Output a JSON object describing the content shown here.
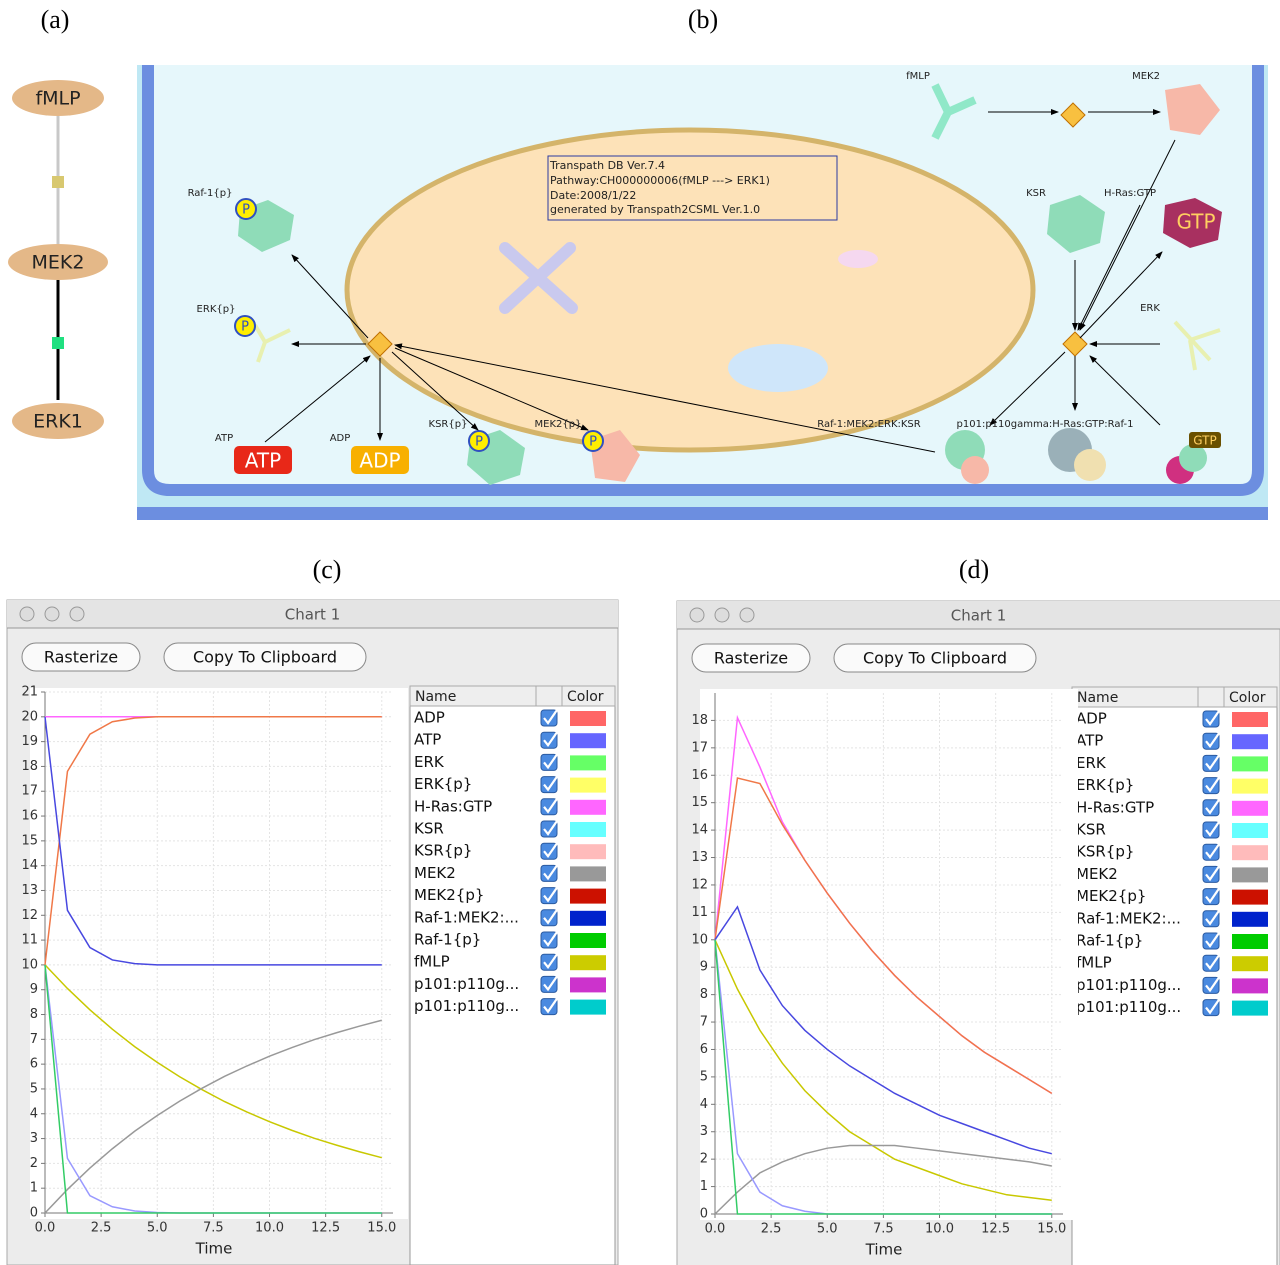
{
  "panel_labels": [
    "(a)",
    "(b)",
    "(c)",
    "(d)"
  ],
  "pathway_a": {
    "nodes": [
      "fMLP",
      "MEK2",
      "ERK1"
    ]
  },
  "pathway_b": {
    "info": [
      "Transpath DB Ver.7.4",
      "Pathway:CH000000006(fMLP ---> ERK1)",
      "Date:2008/1/22",
      "generated by Transpath2CSML Ver.1.0"
    ],
    "labels": [
      "fMLP",
      "MEK2",
      "KSR",
      "H-Ras:GTP",
      "ERK",
      "Raf-1{p}",
      "ERK{p}",
      "ATP",
      "ADP",
      "KSR{p}",
      "MEK2{p}",
      "Raf-1:MEK2:ERK:KSR",
      "p101:p110gamma:H-Ras:GTP:Raf-1"
    ],
    "icons": [
      "P",
      "P",
      "P",
      "P",
      "ATP",
      "ADP",
      "GTP",
      "GTP"
    ]
  },
  "windows": [
    {
      "title": "Chart 1",
      "buttons": [
        "Rasterize",
        "Copy To Clipboard"
      ],
      "table_header": [
        "Name",
        "Color"
      ],
      "legend": [
        {
          "name": "ADP",
          "color": "#ff6666"
        },
        {
          "name": "ATP",
          "color": "#6666ff"
        },
        {
          "name": "ERK",
          "color": "#66ff66"
        },
        {
          "name": "ERK{p}",
          "color": "#ffff66"
        },
        {
          "name": "H-Ras:GTP",
          "color": "#ff66ff"
        },
        {
          "name": "KSR",
          "color": "#66ffff"
        },
        {
          "name": "KSR{p}",
          "color": "#ffbbbb"
        },
        {
          "name": "MEK2",
          "color": "#999999"
        },
        {
          "name": "MEK2{p}",
          "color": "#cc1100"
        },
        {
          "name": "Raf-1:MEK2:...",
          "color": "#0022cc"
        },
        {
          "name": "Raf-1{p}",
          "color": "#00cc00"
        },
        {
          "name": "fMLP",
          "color": "#cccc00"
        },
        {
          "name": "p101:p110g...",
          "color": "#cc33cc"
        },
        {
          "name": "p101:p110g...",
          "color": "#00cccc"
        }
      ]
    },
    {
      "title": "Chart 1",
      "buttons": [
        "Rasterize",
        "Copy To Clipboard"
      ],
      "table_header": [
        "Name",
        "Color"
      ],
      "legend": [
        {
          "name": "ADP",
          "color": "#ff6666"
        },
        {
          "name": "ATP",
          "color": "#6666ff"
        },
        {
          "name": "ERK",
          "color": "#66ff66"
        },
        {
          "name": "ERK{p}",
          "color": "#ffff66"
        },
        {
          "name": "H-Ras:GTP",
          "color": "#ff66ff"
        },
        {
          "name": "KSR",
          "color": "#66ffff"
        },
        {
          "name": "KSR{p}",
          "color": "#ffbbbb"
        },
        {
          "name": "MEK2",
          "color": "#999999"
        },
        {
          "name": "MEK2{p}",
          "color": "#cc1100"
        },
        {
          "name": "Raf-1:MEK2:...",
          "color": "#0022cc"
        },
        {
          "name": "Raf-1{p}",
          "color": "#00cc00"
        },
        {
          "name": "fMLP",
          "color": "#cccc00"
        },
        {
          "name": "p101:p110g...",
          "color": "#cc33cc"
        },
        {
          "name": "p101:p110g...",
          "color": "#00cccc"
        }
      ]
    }
  ],
  "chart_data": [
    {
      "type": "line",
      "x_label": "Time",
      "x": [
        0,
        1,
        2,
        3,
        4,
        5,
        6,
        7,
        8,
        9,
        10,
        11,
        12,
        13,
        14,
        15
      ],
      "xlim": [
        0,
        15.5
      ],
      "ylim": [
        0,
        21
      ],
      "grid": true,
      "xticks": [
        {
          "value": 0,
          "label": "0.0"
        },
        {
          "value": 2.5,
          "label": "2.5"
        },
        {
          "value": 5,
          "label": "5.0"
        },
        {
          "value": 7.5,
          "label": "7.5"
        },
        {
          "value": 10,
          "label": "10.0"
        },
        {
          "value": 12.5,
          "label": "12.5"
        },
        {
          "value": 15,
          "label": "15.0"
        }
      ],
      "yticks": [
        0,
        1,
        2,
        3,
        4,
        5,
        6,
        7,
        8,
        9,
        10,
        11,
        12,
        13,
        14,
        15,
        16,
        17,
        18,
        19,
        20,
        21
      ],
      "series": [
        {
          "name": "H-Ras:GTP",
          "color": "#ff66ff",
          "values": [
            20,
            20,
            20,
            20,
            20,
            20,
            20,
            20,
            20,
            20,
            20,
            20,
            20,
            20,
            20,
            20
          ]
        },
        {
          "name": "ADP",
          "color": "#f07848",
          "values": [
            10,
            17.8,
            19.3,
            19.8,
            19.95,
            20,
            20,
            20,
            20,
            20,
            20,
            20,
            20,
            20,
            20,
            20
          ]
        },
        {
          "name": "ATP",
          "color": "#4848e0",
          "values": [
            20,
            12.2,
            10.7,
            10.2,
            10.05,
            10,
            10,
            10,
            10,
            10,
            10,
            10,
            10,
            10,
            10,
            10
          ]
        },
        {
          "name": "fMLP",
          "color": "#c8c800",
          "values": [
            10,
            9.05,
            8.19,
            7.41,
            6.7,
            6.07,
            5.49,
            4.97,
            4.49,
            4.07,
            3.68,
            3.33,
            3.01,
            2.73,
            2.47,
            2.23
          ]
        },
        {
          "name": "MEK2",
          "color": "#999999",
          "values": [
            0,
            0.95,
            1.81,
            2.59,
            3.3,
            3.93,
            4.51,
            5.03,
            5.51,
            5.93,
            6.32,
            6.67,
            6.99,
            7.27,
            7.53,
            7.77
          ]
        },
        {
          "name": "KSR",
          "color": "#9999ff",
          "values": [
            10,
            2.2,
            0.7,
            0.25,
            0.08,
            0.02,
            0,
            0,
            0,
            0,
            0,
            0,
            0,
            0,
            0,
            0
          ]
        },
        {
          "name": "Raf-1{p}",
          "color": "#33cc66",
          "values": [
            10,
            0,
            0,
            0,
            0,
            0,
            0,
            0,
            0,
            0,
            0,
            0,
            0,
            0,
            0,
            0
          ]
        }
      ]
    },
    {
      "type": "line",
      "x_label": "Time",
      "x": [
        0,
        1,
        2,
        3,
        4,
        5,
        6,
        7,
        8,
        9,
        10,
        11,
        12,
        13,
        14,
        15
      ],
      "xlim": [
        0,
        15.5
      ],
      "ylim": [
        0,
        19
      ],
      "grid": true,
      "xticks": [
        {
          "value": 0,
          "label": "0.0"
        },
        {
          "value": 2.5,
          "label": "2.5"
        },
        {
          "value": 5,
          "label": "5.0"
        },
        {
          "value": 7.5,
          "label": "7.5"
        },
        {
          "value": 10,
          "label": "10.0"
        },
        {
          "value": 12.5,
          "label": "12.5"
        },
        {
          "value": 15,
          "label": "15.0"
        }
      ],
      "yticks": [
        0,
        1,
        2,
        3,
        4,
        5,
        6,
        7,
        8,
        9,
        10,
        11,
        12,
        13,
        14,
        15,
        16,
        17,
        18
      ],
      "series": [
        {
          "name": "H-Ras:GTP",
          "color": "#ff66ff",
          "values": [
            10,
            18.1,
            16.3,
            14.3,
            12.9,
            11.7,
            10.6,
            9.6,
            8.7,
            7.9,
            7.2,
            6.5,
            5.9,
            5.4,
            4.9,
            4.4
          ]
        },
        {
          "name": "ADP",
          "color": "#f07848",
          "values": [
            10,
            15.9,
            15.7,
            14.2,
            12.9,
            11.7,
            10.6,
            9.6,
            8.7,
            7.9,
            7.2,
            6.5,
            5.9,
            5.4,
            4.9,
            4.4
          ]
        },
        {
          "name": "ATP",
          "color": "#4848e0",
          "values": [
            10,
            11.2,
            8.9,
            7.6,
            6.7,
            6,
            5.4,
            4.9,
            4.4,
            4,
            3.6,
            3.3,
            3,
            2.7,
            2.4,
            2.2
          ]
        },
        {
          "name": "fMLP",
          "color": "#c8c800",
          "values": [
            10,
            8.2,
            6.7,
            5.5,
            4.5,
            3.7,
            3,
            2.5,
            2,
            1.7,
            1.4,
            1.1,
            0.9,
            0.7,
            0.6,
            0.5
          ]
        },
        {
          "name": "MEK2",
          "color": "#999999",
          "values": [
            0,
            0.8,
            1.5,
            1.9,
            2.2,
            2.4,
            2.5,
            2.5,
            2.5,
            2.4,
            2.3,
            2.2,
            2.1,
            2,
            1.9,
            1.75
          ]
        },
        {
          "name": "KSR",
          "color": "#9999ff",
          "values": [
            10,
            2.2,
            0.8,
            0.3,
            0.1,
            0,
            0,
            0,
            0,
            0,
            0,
            0,
            0,
            0,
            0,
            0
          ]
        },
        {
          "name": "Raf-1{p}",
          "color": "#33cc66",
          "values": [
            10,
            0,
            0,
            0,
            0,
            0,
            0,
            0,
            0,
            0,
            0,
            0,
            0,
            0,
            0,
            0
          ]
        }
      ]
    }
  ]
}
